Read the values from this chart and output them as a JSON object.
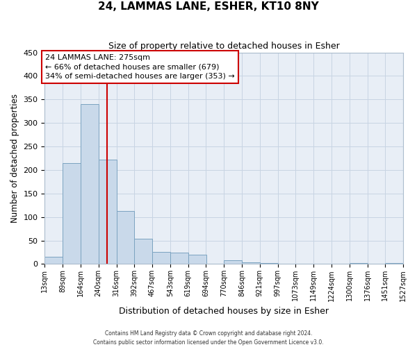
{
  "title": "24, LAMMAS LANE, ESHER, KT10 8NY",
  "subtitle": "Size of property relative to detached houses in Esher",
  "xlabel": "Distribution of detached houses by size in Esher",
  "ylabel": "Number of detached properties",
  "bar_left_edges": [
    13,
    89,
    164,
    240,
    316,
    392,
    467,
    543,
    619,
    694,
    770,
    846,
    921,
    997,
    1073,
    1149,
    1224,
    1300,
    1376,
    1451
  ],
  "bar_heights": [
    15,
    215,
    340,
    222,
    113,
    53,
    25,
    24,
    20,
    0,
    8,
    3,
    2,
    0,
    0,
    0,
    0,
    2,
    0,
    2
  ],
  "bin_width": 76,
  "bar_color": "#c9d9ea",
  "bar_edge_color": "#7ba3c0",
  "vline_x": 275,
  "vline_color": "#cc0000",
  "annotation_text_line1": "24 LAMMAS LANE: 275sqm",
  "annotation_text_line2": "← 66% of detached houses are smaller (679)",
  "annotation_text_line3": "34% of semi-detached houses are larger (353) →",
  "annotation_box_color": "#ffffff",
  "annotation_box_edge_color": "#cc0000",
  "ylim": [
    0,
    450
  ],
  "yticks": [
    0,
    50,
    100,
    150,
    200,
    250,
    300,
    350,
    400,
    450
  ],
  "xtick_labels": [
    "13sqm",
    "89sqm",
    "164sqm",
    "240sqm",
    "316sqm",
    "392sqm",
    "467sqm",
    "543sqm",
    "619sqm",
    "694sqm",
    "770sqm",
    "846sqm",
    "921sqm",
    "997sqm",
    "1073sqm",
    "1149sqm",
    "1224sqm",
    "1300sqm",
    "1376sqm",
    "1451sqm",
    "1527sqm"
  ],
  "grid_color": "#c8d4e3",
  "bg_color": "#e8eef6",
  "footer_line1": "Contains HM Land Registry data © Crown copyright and database right 2024.",
  "footer_line2": "Contains public sector information licensed under the Open Government Licence v3.0."
}
